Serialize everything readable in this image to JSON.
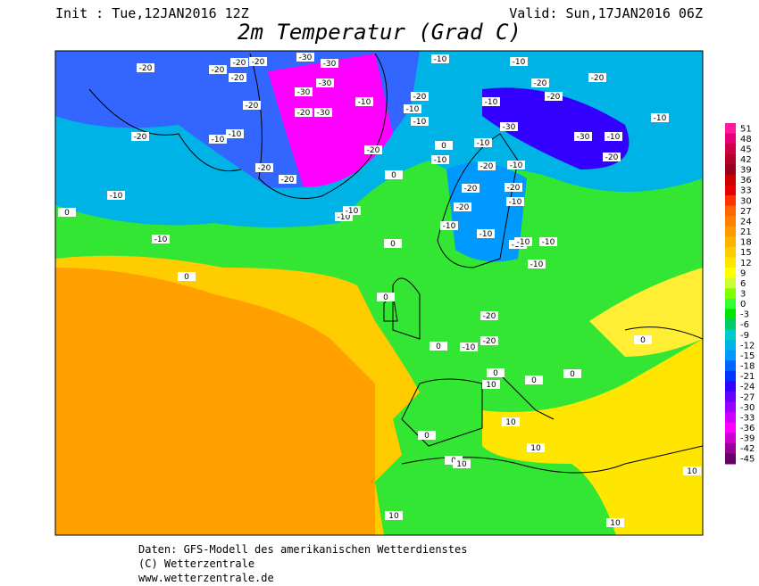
{
  "header": {
    "init": "Init : Tue,12JAN2016 12Z",
    "valid": "Valid: Sun,17JAN2016 06Z",
    "title": "2m Temperatur (Grad C)"
  },
  "colorbar": {
    "values": [
      51,
      48,
      45,
      42,
      39,
      36,
      33,
      30,
      27,
      24,
      21,
      18,
      15,
      12,
      9,
      6,
      3,
      0,
      -3,
      -6,
      -9,
      -12,
      -15,
      -18,
      -21,
      -24,
      -27,
      -30,
      -33,
      -36,
      -39,
      -42,
      -45
    ],
    "colors": [
      "#ff1aa0",
      "#e6007a",
      "#cc0044",
      "#b3002a",
      "#99001a",
      "#cc0000",
      "#e60000",
      "#ff3300",
      "#ff6600",
      "#ff8000",
      "#ff9900",
      "#ffb300",
      "#ffcc00",
      "#ffe600",
      "#ffff00",
      "#ccff33",
      "#80ff00",
      "#33ff33",
      "#00e600",
      "#00cc66",
      "#00cccc",
      "#00b3e6",
      "#0099ff",
      "#0066ff",
      "#0033ff",
      "#3300ff",
      "#6600ff",
      "#9900ff",
      "#cc00ff",
      "#ff00ff",
      "#cc00cc",
      "#990099",
      "#660066"
    ]
  },
  "contour_labels": [
    -20,
    -20,
    -20,
    -20,
    -30,
    -30,
    -20,
    -20,
    -30,
    -30,
    -10,
    -10,
    -10,
    -20,
    -20,
    -10,
    -20,
    -20,
    -30,
    -20,
    -10,
    -20,
    -10,
    -10,
    -30,
    -10,
    -20,
    -10,
    -10,
    -20,
    -20,
    -10,
    -20,
    -30,
    -20,
    -10,
    -10,
    -10,
    -10,
    -20,
    -10,
    -10,
    -10,
    -10,
    -10,
    -20,
    -10,
    -20,
    -10,
    -10,
    -10,
    -20,
    -10,
    -20,
    0,
    0,
    0,
    0,
    0,
    0,
    0,
    0,
    0,
    0,
    0,
    0,
    0,
    10,
    10,
    10,
    10,
    10,
    10,
    10
  ],
  "footer": {
    "line1": "Daten: GFS-Modell des amerikanischen Wetterdienstes",
    "line2": "(C) Wetterzentrale",
    "line3": "www.wetterzentrale.de"
  }
}
